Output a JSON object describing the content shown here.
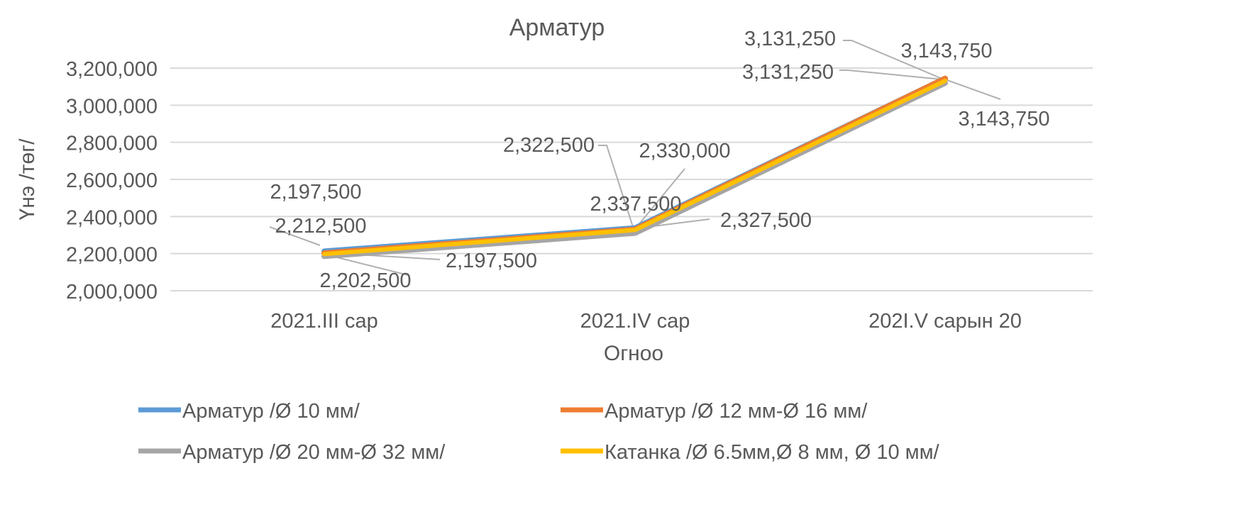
{
  "chart_data": {
    "type": "line",
    "title": "Арматур",
    "xlabel": "Огноо",
    "ylabel": "Үнэ /төг/",
    "categories": [
      "2021.III сар",
      "2021.IV сар",
      "202I.V сарын 20"
    ],
    "ylim": [
      2000000,
      3200000
    ],
    "yticks": [
      2000000,
      2200000,
      2400000,
      2600000,
      2800000,
      3000000,
      3200000
    ],
    "ytick_labels": [
      "2,000,000",
      "2,200,000",
      "2,400,000",
      "2,600,000",
      "2,800,000",
      "3,000,000",
      "3,200,000"
    ],
    "grid": true,
    "legend_position": "bottom",
    "series": [
      {
        "name": "Арматур /Ø 10 мм/",
        "color": "#5B9BD5",
        "values": [
          2212500,
          2337500,
          3143750
        ],
        "labels": [
          "2,212,500",
          "2,337,500",
          "3,143,750"
        ]
      },
      {
        "name": "Арматур /Ø 12 мм-Ø 16 мм/",
        "color": "#ED7D31",
        "values": [
          2202500,
          2330000,
          3143750
        ],
        "labels": [
          "2,202,500",
          "2,330,000",
          "3,143,750"
        ]
      },
      {
        "name": "Арматур /Ø 20 мм-Ø 32 мм/",
        "color": "#A5A5A5",
        "values": [
          2197500,
          2322500,
          3131250
        ],
        "labels": [
          "2,197,500",
          "2,322,500",
          "3,131,250"
        ]
      },
      {
        "name": "Катанка /Ø 6.5мм,Ø 8 мм, Ø 10 мм/",
        "color": "#FFC000",
        "values": [
          2197500,
          2327500,
          3131250
        ],
        "labels": [
          "2,197,500",
          "2,327,500",
          "3,131,250"
        ]
      }
    ]
  }
}
